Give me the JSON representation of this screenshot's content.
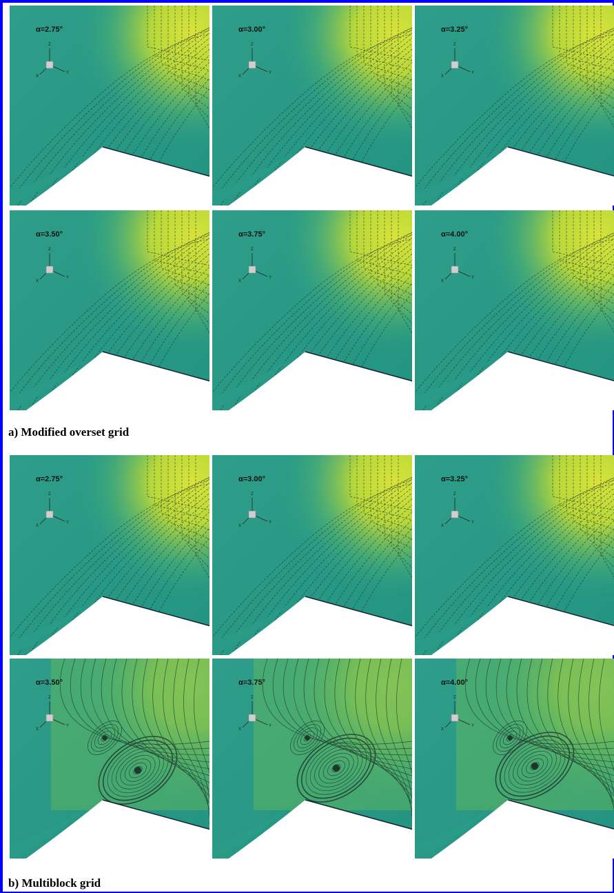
{
  "figure": {
    "axis_labels": {
      "z": "Z",
      "x": "X",
      "y": "Y"
    },
    "groups": [
      {
        "caption": "a) Modified overset grid",
        "panels": [
          "α=2.75°",
          "α=3.00°",
          "α=3.25°",
          "α=3.50°",
          "α=3.75°",
          "α=4.00°"
        ]
      },
      {
        "caption": "b) Multiblock grid",
        "panels": [
          "α=2.75°",
          "α=3.00°",
          "α=3.25°",
          "α=3.50°",
          "α=3.75°",
          "α=4.00°"
        ]
      }
    ]
  }
}
